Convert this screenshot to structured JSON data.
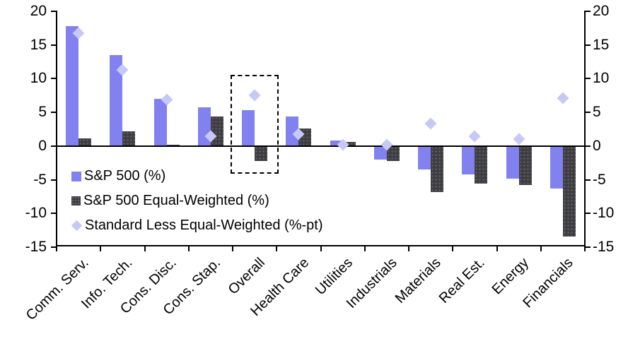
{
  "chart_data": {
    "type": "bar",
    "title": "",
    "categories": [
      "Comm. Serv.",
      "Info. Tech.",
      "Cons. Disc.",
      "Cons. Stap.",
      "Overall",
      "Health Care",
      "Utilities",
      "Industrials",
      "Materials",
      "Real Est.",
      "Energy",
      "Financials"
    ],
    "series": [
      {
        "name": "S&P 500 (%)",
        "type": "bar",
        "color": "#8181F0",
        "values": [
          17.8,
          13.5,
          7.0,
          5.7,
          5.3,
          4.4,
          0.8,
          -2.0,
          -3.5,
          -4.2,
          -4.8,
          -6.3
        ]
      },
      {
        "name": "S&P 500 Equal-Weighted (%)",
        "type": "bar",
        "color": "#3E3E42",
        "values": [
          1.1,
          2.2,
          0.2,
          4.4,
          -2.2,
          2.6,
          0.6,
          -2.2,
          -6.8,
          -5.6,
          -5.8,
          -13.4
        ]
      },
      {
        "name": "Standard Less Equal-Weighted (%-pt)",
        "type": "scatter-diamond",
        "color": "#C6C9F5",
        "values": [
          16.7,
          11.3,
          6.9,
          1.4,
          7.5,
          1.8,
          0.2,
          0.2,
          3.3,
          1.4,
          1.0,
          7.1
        ]
      }
    ],
    "xlabel": "",
    "ylabel": "",
    "y_axis": {
      "min": -15,
      "max": 20,
      "step": 5,
      "ticks": [
        "20",
        "15",
        "10",
        "5",
        "0",
        "-5",
        "-10",
        "-15"
      ]
    },
    "right_axis_ticks": [
      "20",
      "15",
      "10",
      "5",
      "0",
      "-5",
      "-10",
      "-15"
    ],
    "grid": false,
    "legend_position": "inside-left",
    "highlight": {
      "category": "Overall",
      "style": "dashed-box",
      "y_top_value": 10.6,
      "y_bottom_value": -3.7
    }
  }
}
